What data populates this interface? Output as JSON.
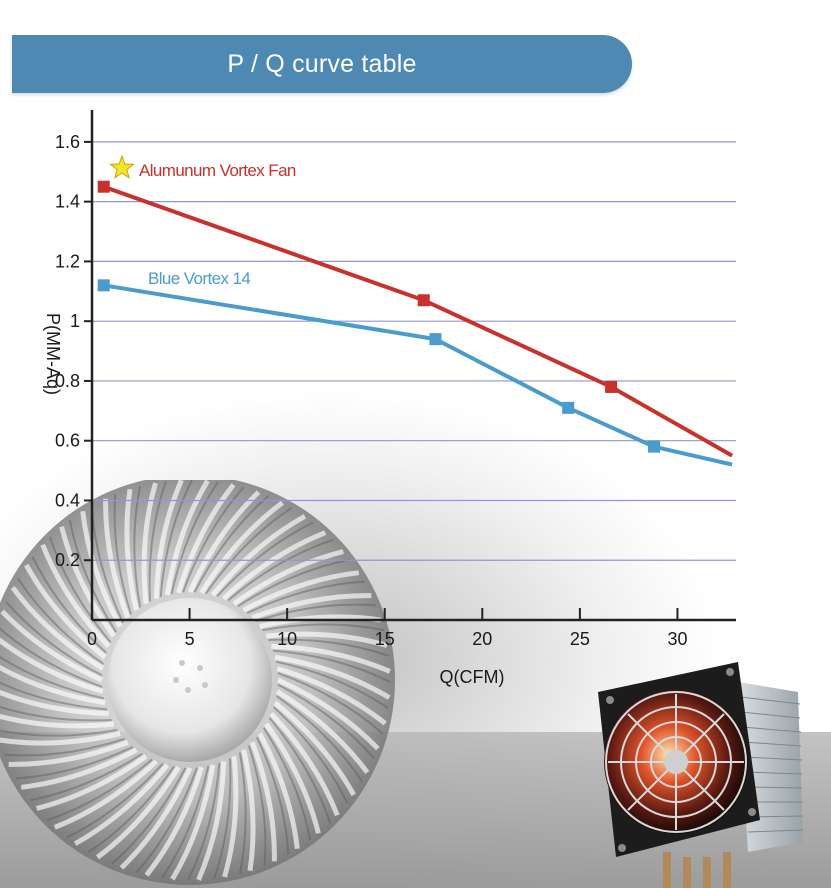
{
  "header": {
    "title": "P / Q curve table"
  },
  "colors": {
    "banner": "#4e89b3",
    "series_red": "#c8312c",
    "series_blue": "#4a9ccd",
    "grid": "#8f96d8",
    "star": "#f5e62a"
  },
  "chart_data": {
    "type": "line",
    "title": "P / Q curve table",
    "xlabel": "Q(CFM)",
    "ylabel": "P(MM-Aq)",
    "xlim": [
      0,
      33
    ],
    "ylim": [
      0,
      1.7
    ],
    "xticks": [
      0,
      5,
      10,
      15,
      20,
      25,
      30
    ],
    "yticks": [
      0.2,
      0.4,
      0.6,
      0.8,
      1,
      1.2,
      1.4,
      1.6
    ],
    "xtick_labels": [
      "0",
      "5",
      "10",
      "15",
      "20",
      "25",
      "30"
    ],
    "ytick_labels": [
      "0.2",
      "0.4",
      "0.6",
      "0.8",
      "1",
      "1.2",
      "1.4",
      "1.6"
    ],
    "grid": "horizontal",
    "legend": "inline labels",
    "series": [
      {
        "name": "Alumunum Vortex Fan",
        "color": "#c8312c",
        "x": [
          0.6,
          17.0,
          26.6,
          32.8
        ],
        "y": [
          1.45,
          1.07,
          0.78,
          0.55
        ],
        "markers": [
          true,
          true,
          true,
          false
        ]
      },
      {
        "name": "Blue Vortex 14",
        "color": "#4a9ccd",
        "x": [
          0.6,
          17.6,
          24.4,
          28.8,
          32.8
        ],
        "y": [
          1.12,
          0.94,
          0.71,
          0.58,
          0.52
        ],
        "markers": [
          true,
          true,
          true,
          true,
          false
        ]
      }
    ]
  }
}
